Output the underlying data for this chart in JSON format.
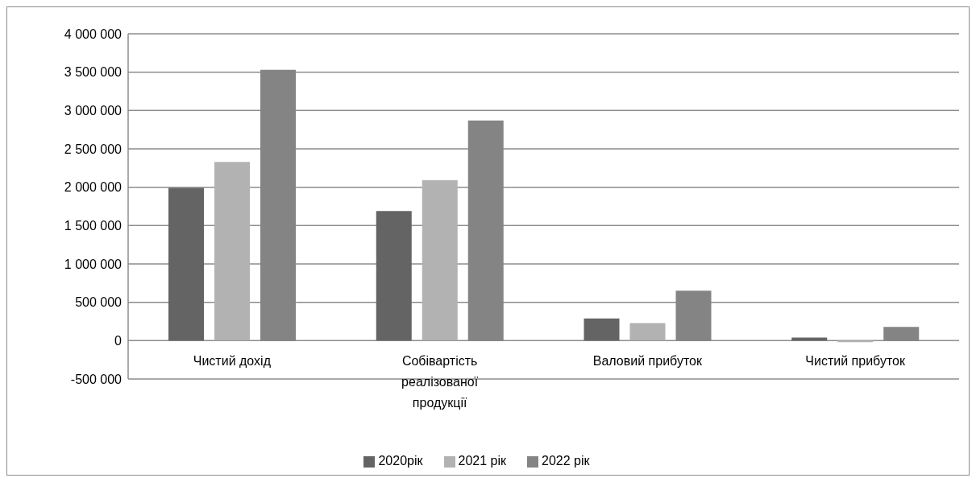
{
  "chart_data": {
    "type": "bar",
    "categories": [
      "Чистий дохід",
      "Собівартість реалізованої продукції",
      "Валовий прибуток",
      "Чистий прибуток"
    ],
    "series": [
      {
        "name": "2020рік",
        "color": "#646464",
        "values": [
          1990000,
          1690000,
          290000,
          40000
        ]
      },
      {
        "name": "2021 рік",
        "color": "#b2b2b2",
        "values": [
          2330000,
          2090000,
          230000,
          -20000
        ]
      },
      {
        "name": "2022 рік",
        "color": "#848484",
        "values": [
          3530000,
          2870000,
          650000,
          180000
        ]
      }
    ],
    "ylim": [
      -500000,
      4000000
    ],
    "yticks": [
      {
        "value": -500000,
        "label": "-500 000"
      },
      {
        "value": 0,
        "label": "0"
      },
      {
        "value": 500000,
        "label": "500 000"
      },
      {
        "value": 1000000,
        "label": "1 000 000"
      },
      {
        "value": 1500000,
        "label": "1 500 000"
      },
      {
        "value": 2000000,
        "label": "2 000 000"
      },
      {
        "value": 2500000,
        "label": "2 500 000"
      },
      {
        "value": 3000000,
        "label": "3 000 000"
      },
      {
        "value": 3500000,
        "label": "3 500 000"
      },
      {
        "value": 4000000,
        "label": "4 000 000"
      }
    ],
    "grid": "y",
    "legend": "bottom"
  }
}
